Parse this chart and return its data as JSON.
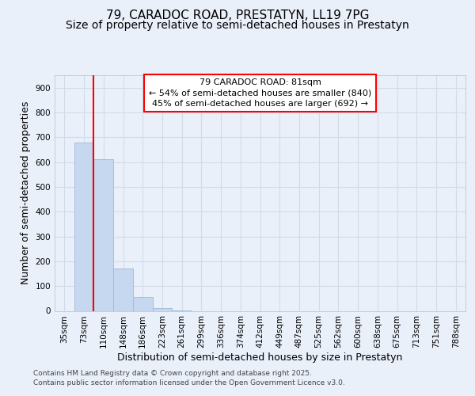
{
  "title_line1": "79, CARADOC ROAD, PRESTATYN, LL19 7PG",
  "title_line2": "Size of property relative to semi-detached houses in Prestatyn",
  "xlabel": "Distribution of semi-detached houses by size in Prestatyn",
  "ylabel": "Number of semi-detached properties",
  "footer_line1": "Contains HM Land Registry data © Crown copyright and database right 2025.",
  "footer_line2": "Contains public sector information licensed under the Open Government Licence v3.0.",
  "categories": [
    "35sqm",
    "73sqm",
    "110sqm",
    "148sqm",
    "186sqm",
    "223sqm",
    "261sqm",
    "299sqm",
    "336sqm",
    "374sqm",
    "412sqm",
    "449sqm",
    "487sqm",
    "525sqm",
    "562sqm",
    "600sqm",
    "638sqm",
    "675sqm",
    "713sqm",
    "751sqm",
    "788sqm"
  ],
  "values": [
    0,
    680,
    610,
    170,
    55,
    12,
    2,
    0,
    0,
    0,
    0,
    0,
    0,
    0,
    0,
    0,
    0,
    0,
    0,
    0,
    0
  ],
  "bar_color": "#c5d8f0",
  "bar_edge_color": "#a0b8d8",
  "ylim": [
    0,
    950
  ],
  "yticks": [
    0,
    100,
    200,
    300,
    400,
    500,
    600,
    700,
    800,
    900
  ],
  "red_line_x": 1.5,
  "annotation_title": "79 CARADOC ROAD: 81sqm",
  "annotation_line2": "← 54% of semi-detached houses are smaller (840)",
  "annotation_line3": "45% of semi-detached houses are larger (692) →",
  "background_color": "#eaf0fa",
  "plot_bg_color": "#eaf0fa",
  "grid_color": "#d0dce8",
  "title_fontsize": 11,
  "subtitle_fontsize": 10,
  "tick_fontsize": 7.5,
  "label_fontsize": 9,
  "annot_fontsize": 8
}
